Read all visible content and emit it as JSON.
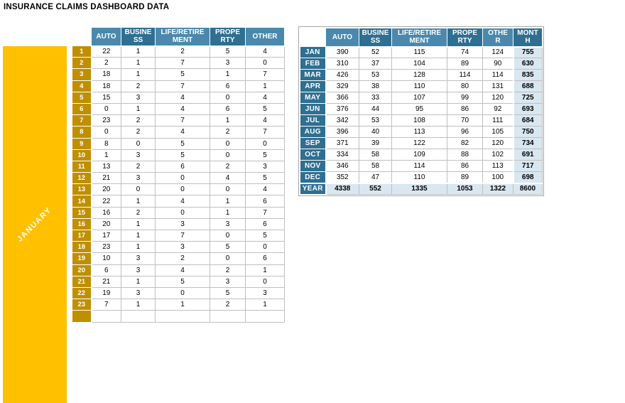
{
  "title": "INSURANCE CLAIMS DASHBOARD DATA",
  "colors": {
    "header_light_blue": "#4A89AD",
    "header_dark_teal": "#2F6F91",
    "month_block_yellow": "#FFC000",
    "row_number_gold": "#BF8F00",
    "total_cell_light_blue": "#D9E7F1",
    "grid_gray": "#BFBFBF"
  },
  "daily_table": {
    "month_label": "JANUARY",
    "columns": [
      "AUTO",
      "BUSINESS",
      "LIFE/RETIREMENT",
      "PROPERTY",
      "OTHER"
    ],
    "column_headers_display": [
      "AUTO",
      "BUSINE\nSS",
      "LIFE/RETIRE\nMENT",
      "PROPE\nRTY",
      "OTHER"
    ],
    "rows": [
      {
        "day": "1",
        "values": [
          22,
          1,
          2,
          5,
          4
        ]
      },
      {
        "day": "2",
        "values": [
          2,
          1,
          7,
          3,
          0
        ]
      },
      {
        "day": "3",
        "values": [
          18,
          1,
          5,
          1,
          7
        ]
      },
      {
        "day": "4",
        "values": [
          18,
          2,
          7,
          6,
          1
        ]
      },
      {
        "day": "5",
        "values": [
          15,
          3,
          4,
          0,
          4
        ]
      },
      {
        "day": "6",
        "values": [
          0,
          1,
          4,
          6,
          5
        ]
      },
      {
        "day": "7",
        "values": [
          23,
          2,
          7,
          1,
          4
        ]
      },
      {
        "day": "8",
        "values": [
          0,
          2,
          4,
          2,
          7
        ]
      },
      {
        "day": "9",
        "values": [
          8,
          0,
          5,
          0,
          0
        ]
      },
      {
        "day": "10",
        "values": [
          1,
          3,
          5,
          0,
          5
        ]
      },
      {
        "day": "11",
        "values": [
          13,
          2,
          6,
          2,
          3
        ]
      },
      {
        "day": "12",
        "values": [
          21,
          3,
          0,
          4,
          5
        ]
      },
      {
        "day": "13",
        "values": [
          20,
          0,
          0,
          0,
          4
        ]
      },
      {
        "day": "14",
        "values": [
          22,
          1,
          4,
          1,
          6
        ]
      },
      {
        "day": "15",
        "values": [
          16,
          2,
          0,
          1,
          7
        ]
      },
      {
        "day": "16",
        "values": [
          20,
          1,
          3,
          3,
          6
        ]
      },
      {
        "day": "17",
        "values": [
          17,
          1,
          7,
          0,
          5
        ]
      },
      {
        "day": "18",
        "values": [
          23,
          1,
          3,
          5,
          0
        ]
      },
      {
        "day": "19",
        "values": [
          10,
          3,
          2,
          0,
          6
        ]
      },
      {
        "day": "20",
        "values": [
          6,
          3,
          4,
          2,
          1
        ]
      },
      {
        "day": "21",
        "values": [
          21,
          1,
          5,
          3,
          0
        ]
      },
      {
        "day": "22",
        "values": [
          19,
          3,
          0,
          5,
          3
        ]
      },
      {
        "day": "23",
        "values": [
          7,
          1,
          1,
          2,
          1
        ]
      }
    ]
  },
  "monthly_table": {
    "columns": [
      "AUTO",
      "BUSINESS",
      "LIFE/RETIREMENT",
      "PROPERTY",
      "OTHER",
      "MONTH"
    ],
    "column_headers_display": [
      "AUTO",
      "BUSINE\nSS",
      "LIFE/RETIRE\nMENT",
      "PROPE\nRTY",
      "OTHE\nR",
      "MONT\nH"
    ],
    "rows": [
      {
        "month": "JAN",
        "values": [
          390,
          52,
          115,
          74,
          124
        ],
        "total": 755
      },
      {
        "month": "FEB",
        "values": [
          310,
          37,
          104,
          89,
          90
        ],
        "total": 630
      },
      {
        "month": "MAR",
        "values": [
          426,
          53,
          128,
          114,
          114
        ],
        "total": 835
      },
      {
        "month": "APR",
        "values": [
          329,
          38,
          110,
          80,
          131
        ],
        "total": 688
      },
      {
        "month": "MAY",
        "values": [
          366,
          33,
          107,
          99,
          120
        ],
        "total": 725
      },
      {
        "month": "JUN",
        "values": [
          376,
          44,
          95,
          86,
          92
        ],
        "total": 693
      },
      {
        "month": "JUL",
        "values": [
          342,
          53,
          108,
          70,
          111
        ],
        "total": 684
      },
      {
        "month": "AUG",
        "values": [
          396,
          40,
          113,
          96,
          105
        ],
        "total": 750
      },
      {
        "month": "SEP",
        "values": [
          371,
          39,
          122,
          82,
          120
        ],
        "total": 734
      },
      {
        "month": "OCT",
        "values": [
          334,
          58,
          109,
          88,
          102
        ],
        "total": 691
      },
      {
        "month": "NOV",
        "values": [
          346,
          58,
          114,
          86,
          113
        ],
        "total": 717
      },
      {
        "month": "DEC",
        "values": [
          352,
          47,
          110,
          89,
          100
        ],
        "total": 698
      }
    ],
    "year_row": {
      "label": "YEAR",
      "values": [
        4338,
        552,
        1335,
        1053,
        1322
      ],
      "total": 8600
    }
  }
}
